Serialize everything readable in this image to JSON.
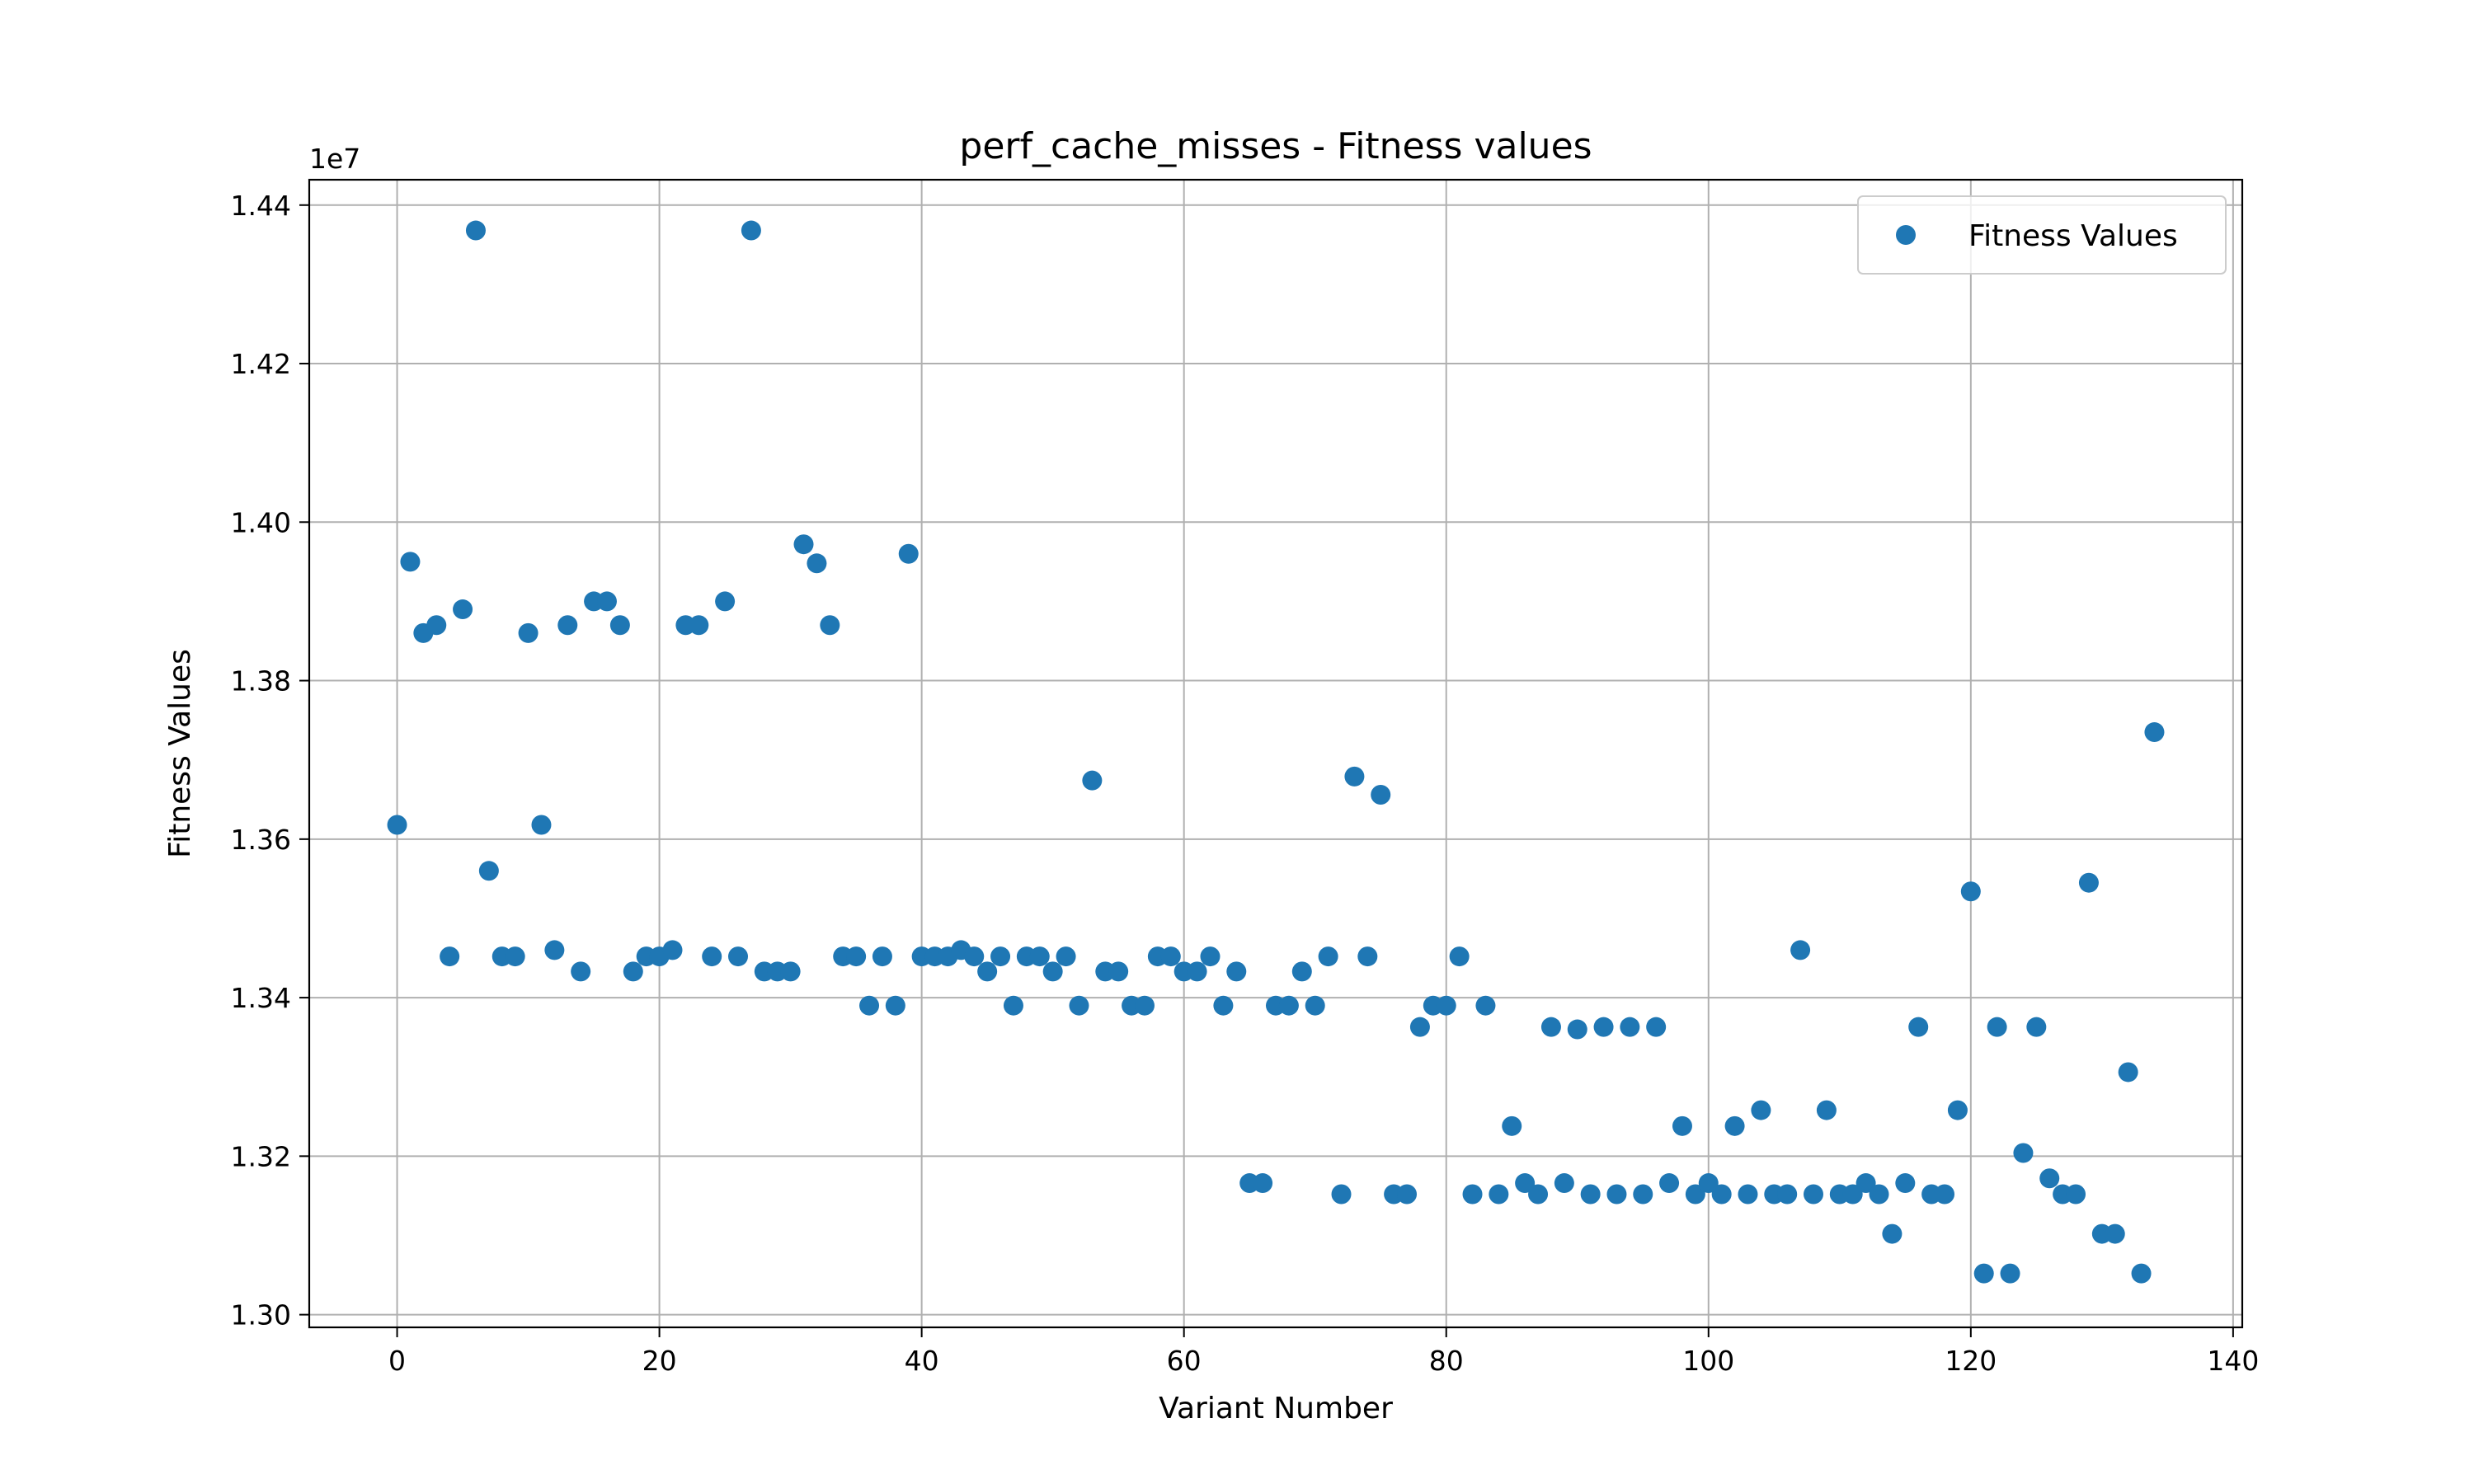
{
  "chart_data": {
    "type": "scatter",
    "title": "perf_cache_misses - Fitness values",
    "xlabel": "Variant Number",
    "ylabel": "Fitness Values",
    "y_offset_label": "1e7",
    "xlim": [
      -6.7,
      140.7
    ],
    "ylim": [
      1.2984,
      1.4432
    ],
    "x_ticks": [
      0,
      20,
      40,
      60,
      80,
      100,
      120,
      140
    ],
    "x_tick_labels": [
      "0",
      "20",
      "40",
      "60",
      "80",
      "100",
      "120",
      "140"
    ],
    "y_ticks": [
      1.3,
      1.32,
      1.34,
      1.36,
      1.38,
      1.4,
      1.42,
      1.44
    ],
    "y_tick_labels": [
      "1.30",
      "1.32",
      "1.34",
      "1.36",
      "1.38",
      "1.40",
      "1.42",
      "1.44"
    ],
    "grid": true,
    "legend_position": "top-right",
    "series": [
      {
        "name": "Fitness Values",
        "color": "#1f77b4",
        "x": [
          0,
          1,
          2,
          3,
          4,
          5,
          6,
          7,
          8,
          9,
          10,
          11,
          12,
          13,
          14,
          15,
          16,
          17,
          18,
          19,
          20,
          21,
          22,
          23,
          24,
          25,
          26,
          27,
          28,
          29,
          30,
          31,
          32,
          33,
          34,
          35,
          36,
          37,
          38,
          39,
          40,
          41,
          42,
          43,
          44,
          45,
          46,
          47,
          48,
          49,
          50,
          51,
          52,
          53,
          54,
          55,
          56,
          57,
          58,
          59,
          60,
          61,
          62,
          63,
          64,
          65,
          66,
          67,
          68,
          69,
          70,
          71,
          72,
          73,
          74,
          75,
          76,
          77,
          78,
          79,
          80,
          81,
          82,
          83,
          84,
          85,
          86,
          87,
          88,
          89,
          90,
          91,
          92,
          93,
          94,
          95,
          96,
          97,
          98,
          99,
          100,
          101,
          102,
          103,
          104,
          105,
          106,
          107,
          108,
          109,
          110,
          111,
          112,
          113,
          114,
          115,
          116,
          117,
          118,
          119,
          120,
          121,
          122,
          123,
          124,
          125,
          126,
          127,
          128,
          129,
          130,
          131,
          132,
          133,
          134
        ],
        "y": [
          1.3618,
          1.395,
          1.386,
          1.387,
          1.3452,
          1.389,
          1.4368,
          1.356,
          1.3452,
          1.3452,
          1.386,
          1.3618,
          1.346,
          1.387,
          1.3433,
          1.39,
          1.39,
          1.387,
          1.3433,
          1.3452,
          1.3452,
          1.346,
          1.387,
          1.387,
          1.3452,
          1.39,
          1.3452,
          1.4368,
          1.3433,
          1.3433,
          1.3433,
          1.3972,
          1.3948,
          1.387,
          1.3452,
          1.3452,
          1.339,
          1.3452,
          1.339,
          1.396,
          1.3452,
          1.3452,
          1.3452,
          1.346,
          1.3452,
          1.3433,
          1.3452,
          1.339,
          1.3452,
          1.3452,
          1.3433,
          1.3452,
          1.339,
          1.3674,
          1.3433,
          1.3433,
          1.339,
          1.339,
          1.3452,
          1.3452,
          1.3433,
          1.3433,
          1.3452,
          1.339,
          1.3433,
          1.3166,
          1.3166,
          1.339,
          1.339,
          1.3433,
          1.339,
          1.3452,
          1.3152,
          1.3679,
          1.3452,
          1.3656,
          1.3152,
          1.3152,
          1.3363,
          1.339,
          1.339,
          1.3452,
          1.3152,
          1.339,
          1.3152,
          1.3238,
          1.3166,
          1.3152,
          1.3363,
          1.3166,
          1.336,
          1.3152,
          1.3363,
          1.3152,
          1.3363,
          1.3152,
          1.3363,
          1.3166,
          1.3238,
          1.3152,
          1.3166,
          1.3152,
          1.3238,
          1.3152,
          1.3258,
          1.3152,
          1.3152,
          1.346,
          1.3152,
          1.3258,
          1.3152,
          1.3152,
          1.3166,
          1.3152,
          1.3102,
          1.3166,
          1.3363,
          1.3152,
          1.3152,
          1.3258,
          1.3534,
          1.3052,
          1.3363,
          1.3052,
          1.3204,
          1.3363,
          1.3172,
          1.3152,
          1.3152,
          1.3545,
          1.3102,
          1.3102,
          1.3306,
          1.3052,
          1.3735
        ]
      }
    ]
  }
}
